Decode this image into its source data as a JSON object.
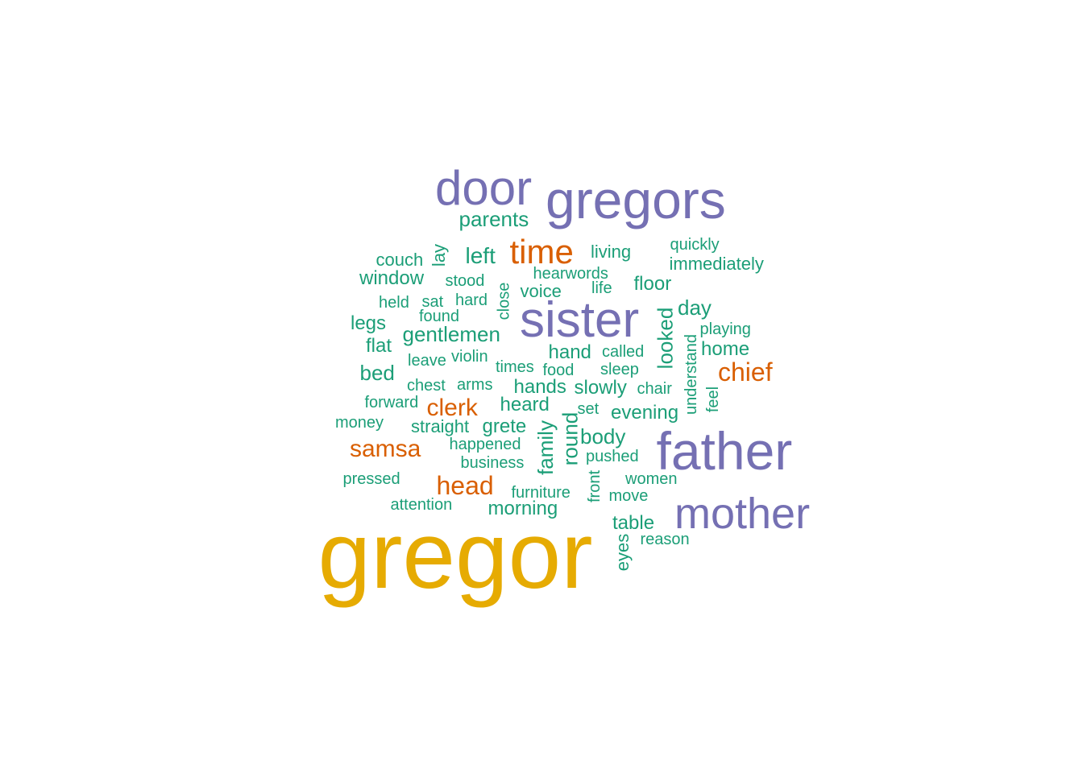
{
  "chart_data": {
    "type": "wordcloud",
    "title": "",
    "colors": {
      "tier1": "#E6AB02",
      "tier2": "#7570B3",
      "tier3": "#D95F02",
      "tier4": "#1B9E77"
    },
    "words": [
      {
        "text": "gregor",
        "tier": 1,
        "rotated": false
      },
      {
        "text": "door",
        "tier": 2,
        "rotated": false
      },
      {
        "text": "gregors",
        "tier": 2,
        "rotated": false
      },
      {
        "text": "sister",
        "tier": 2,
        "rotated": false
      },
      {
        "text": "father",
        "tier": 2,
        "rotated": false
      },
      {
        "text": "mother",
        "tier": 2,
        "rotated": false
      },
      {
        "text": "time",
        "tier": 3,
        "rotated": false
      },
      {
        "text": "chief",
        "tier": 3,
        "rotated": false
      },
      {
        "text": "clerk",
        "tier": 3,
        "rotated": false
      },
      {
        "text": "samsa",
        "tier": 3,
        "rotated": false
      },
      {
        "text": "head",
        "tier": 3,
        "rotated": false
      },
      {
        "text": "parents",
        "tier": 4,
        "rotated": false
      },
      {
        "text": "left",
        "tier": 4,
        "rotated": false
      },
      {
        "text": "lay",
        "tier": 4,
        "rotated": true
      },
      {
        "text": "couch",
        "tier": 4,
        "rotated": false
      },
      {
        "text": "window",
        "tier": 4,
        "rotated": false
      },
      {
        "text": "living",
        "tier": 4,
        "rotated": false
      },
      {
        "text": "quickly",
        "tier": 4,
        "rotated": false
      },
      {
        "text": "immediately",
        "tier": 4,
        "rotated": false
      },
      {
        "text": "hearwords",
        "tier": 4,
        "rotated": false
      },
      {
        "text": "stood",
        "tier": 4,
        "rotated": false
      },
      {
        "text": "close",
        "tier": 4,
        "rotated": true
      },
      {
        "text": "voice",
        "tier": 4,
        "rotated": false
      },
      {
        "text": "life",
        "tier": 4,
        "rotated": false
      },
      {
        "text": "floor",
        "tier": 4,
        "rotated": false
      },
      {
        "text": "held",
        "tier": 4,
        "rotated": false
      },
      {
        "text": "sat",
        "tier": 4,
        "rotated": false
      },
      {
        "text": "hard",
        "tier": 4,
        "rotated": false
      },
      {
        "text": "found",
        "tier": 4,
        "rotated": false
      },
      {
        "text": "day",
        "tier": 4,
        "rotated": false
      },
      {
        "text": "legs",
        "tier": 4,
        "rotated": false
      },
      {
        "text": "gentlemen",
        "tier": 4,
        "rotated": false
      },
      {
        "text": "looked",
        "tier": 4,
        "rotated": true
      },
      {
        "text": "playing",
        "tier": 4,
        "rotated": false
      },
      {
        "text": "understand",
        "tier": 4,
        "rotated": true
      },
      {
        "text": "flat",
        "tier": 4,
        "rotated": false
      },
      {
        "text": "leave",
        "tier": 4,
        "rotated": false
      },
      {
        "text": "violin",
        "tier": 4,
        "rotated": false
      },
      {
        "text": "hand",
        "tier": 4,
        "rotated": false
      },
      {
        "text": "called",
        "tier": 4,
        "rotated": false
      },
      {
        "text": "home",
        "tier": 4,
        "rotated": false
      },
      {
        "text": "bed",
        "tier": 4,
        "rotated": false
      },
      {
        "text": "times",
        "tier": 4,
        "rotated": false
      },
      {
        "text": "food",
        "tier": 4,
        "rotated": false
      },
      {
        "text": "sleep",
        "tier": 4,
        "rotated": false
      },
      {
        "text": "chest",
        "tier": 4,
        "rotated": false
      },
      {
        "text": "arms",
        "tier": 4,
        "rotated": false
      },
      {
        "text": "hands",
        "tier": 4,
        "rotated": false
      },
      {
        "text": "slowly",
        "tier": 4,
        "rotated": false
      },
      {
        "text": "chair",
        "tier": 4,
        "rotated": false
      },
      {
        "text": "feel",
        "tier": 4,
        "rotated": true
      },
      {
        "text": "forward",
        "tier": 4,
        "rotated": false
      },
      {
        "text": "heard",
        "tier": 4,
        "rotated": false
      },
      {
        "text": "set",
        "tier": 4,
        "rotated": false
      },
      {
        "text": "evening",
        "tier": 4,
        "rotated": false
      },
      {
        "text": "money",
        "tier": 4,
        "rotated": false
      },
      {
        "text": "straight",
        "tier": 4,
        "rotated": false
      },
      {
        "text": "grete",
        "tier": 4,
        "rotated": false
      },
      {
        "text": "family",
        "tier": 4,
        "rotated": true
      },
      {
        "text": "round",
        "tier": 4,
        "rotated": true
      },
      {
        "text": "body",
        "tier": 4,
        "rotated": false
      },
      {
        "text": "happened",
        "tier": 4,
        "rotated": false
      },
      {
        "text": "pushed",
        "tier": 4,
        "rotated": false
      },
      {
        "text": "business",
        "tier": 4,
        "rotated": false
      },
      {
        "text": "pressed",
        "tier": 4,
        "rotated": false
      },
      {
        "text": "front",
        "tier": 4,
        "rotated": true
      },
      {
        "text": "women",
        "tier": 4,
        "rotated": false
      },
      {
        "text": "furniture",
        "tier": 4,
        "rotated": false
      },
      {
        "text": "move",
        "tier": 4,
        "rotated": false
      },
      {
        "text": "attention",
        "tier": 4,
        "rotated": false
      },
      {
        "text": "morning",
        "tier": 4,
        "rotated": false
      },
      {
        "text": "table",
        "tier": 4,
        "rotated": false
      },
      {
        "text": "eyes",
        "tier": 4,
        "rotated": true
      },
      {
        "text": "reason",
        "tier": 4,
        "rotated": false
      }
    ]
  }
}
